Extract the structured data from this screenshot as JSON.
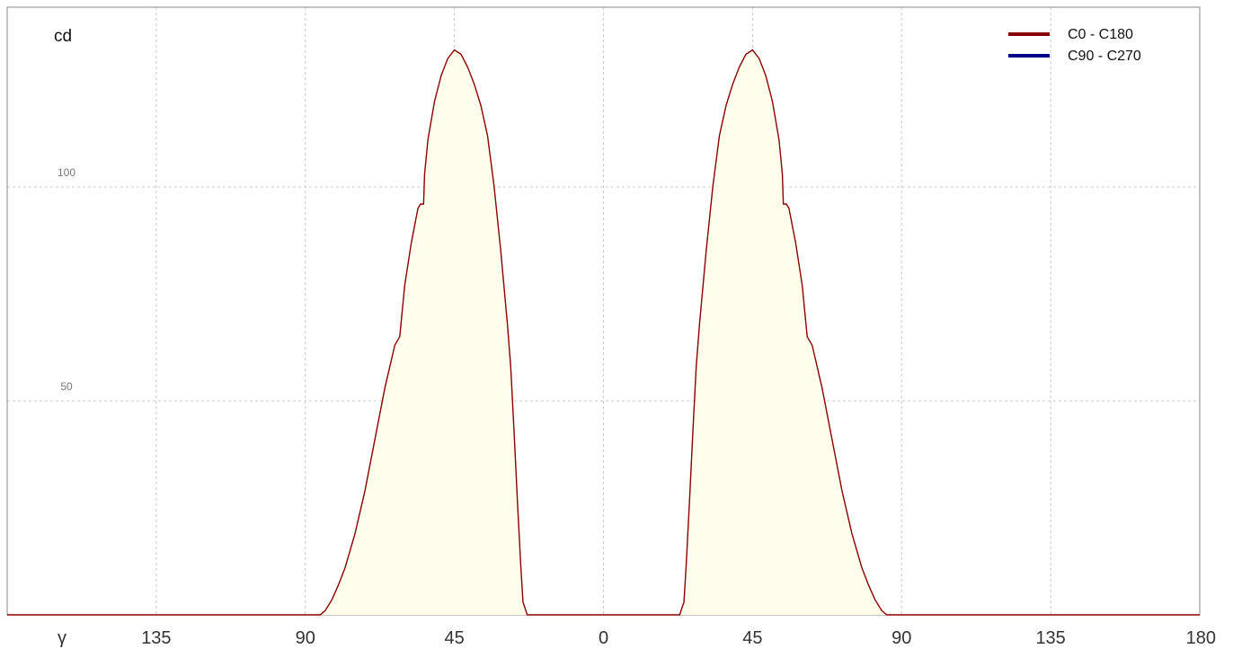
{
  "chart_data": {
    "type": "area",
    "title": "",
    "ylabel": "cd",
    "xlabel": "γ",
    "x_tick_labels": [
      "135",
      "90",
      "45",
      "0",
      "45",
      "90",
      "135",
      "180"
    ],
    "x_tick_positions": [
      -135,
      -90,
      -45,
      0,
      45,
      90,
      135,
      180
    ],
    "y_tick_labels": [
      "50",
      "100"
    ],
    "y_tick_positions": [
      50,
      100
    ],
    "xlim": [
      -180,
      180
    ],
    "ylim": [
      0,
      142
    ],
    "grid": true,
    "legend_position": "top-right",
    "series": [
      {
        "name": "C0 - C180",
        "color": "#8b0000",
        "fill": "#fffdeb",
        "x": [
          -180,
          -85.5,
          -84,
          -82,
          -80,
          -78,
          -75,
          -72,
          -69,
          -66,
          -63,
          -61.5,
          -60,
          -58,
          -56,
          -55.2,
          -54.3,
          -54,
          -53,
          -51,
          -49,
          -47,
          -45,
          -43,
          -41,
          -39,
          -37,
          -35,
          -33,
          -31,
          -29,
          -28,
          -27,
          -26,
          -25,
          -24.3,
          -23,
          -22,
          22,
          23,
          24.3,
          25,
          26,
          27,
          28,
          29,
          31,
          33,
          35,
          37,
          39,
          41,
          43,
          45,
          47,
          49,
          51,
          53,
          54,
          54.3,
          55.2,
          56,
          58,
          60,
          61.5,
          63,
          66,
          69,
          72,
          75,
          78,
          80,
          82,
          84,
          85.5,
          180
        ],
        "values": [
          0,
          0,
          1,
          3.5,
          7,
          11,
          19,
          29,
          41,
          53,
          63,
          65,
          77,
          87,
          95,
          96,
          96,
          103,
          111,
          120,
          126,
          130,
          132,
          131,
          128,
          124,
          119,
          112,
          100,
          85,
          68,
          58,
          43,
          27,
          12,
          3,
          0,
          0,
          0,
          0,
          3,
          12,
          27,
          43,
          58,
          68,
          85,
          100,
          112,
          119,
          124,
          128,
          131,
          132,
          130,
          126,
          120,
          111,
          103,
          96,
          96,
          95,
          87,
          77,
          65,
          63,
          53,
          41,
          29,
          19,
          11,
          7,
          3.5,
          1,
          0,
          0
        ]
      },
      {
        "name": "C90 - C270",
        "color": "#00008b"
      }
    ]
  }
}
